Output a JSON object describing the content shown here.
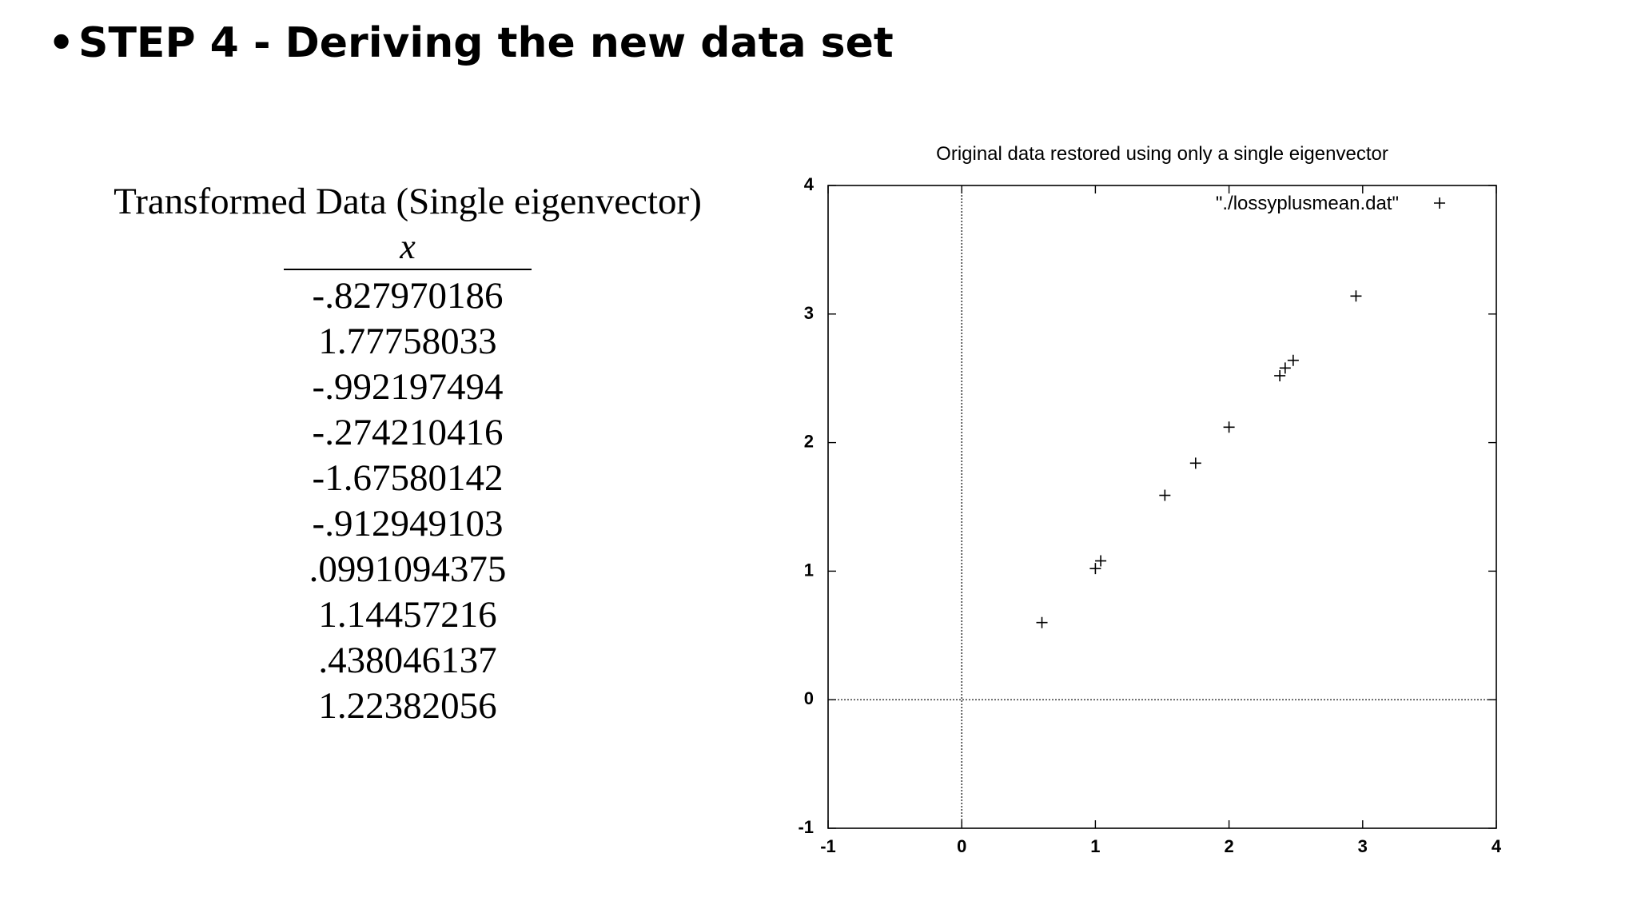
{
  "slide": {
    "bullet": "•",
    "title": "STEP 4 - Deriving the new data set"
  },
  "table": {
    "title": "Transformed Data (Single eigenvector)",
    "column_header": "x",
    "values": [
      "-.827970186",
      "1.77758033",
      "-.992197494",
      "-.274210416",
      "-1.67580142",
      "-.912949103",
      ".0991094375",
      "1.14457216",
      ".438046137",
      "1.22382056"
    ]
  },
  "chart_data": {
    "type": "scatter",
    "title": "Original data restored using only a single eigenvector",
    "xlabel": "",
    "ylabel": "",
    "xlim": [
      -1,
      4
    ],
    "ylim": [
      -1,
      4
    ],
    "x_ticks": [
      "-1",
      "0",
      "1",
      "2",
      "3",
      "4"
    ],
    "y_ticks": [
      "-1",
      "0",
      "1",
      "2",
      "3",
      "4"
    ],
    "zero_lines": true,
    "marker": "+",
    "legend_position": "top-right",
    "series": [
      {
        "name": "\"./lossyplusmean.dat\"",
        "x": [
          0.6,
          1.0,
          1.04,
          1.52,
          1.75,
          2.0,
          2.38,
          2.42,
          2.48,
          2.95
        ],
        "y": [
          0.6,
          1.02,
          1.08,
          1.59,
          1.84,
          2.12,
          2.52,
          2.58,
          2.64,
          3.14
        ]
      }
    ]
  }
}
